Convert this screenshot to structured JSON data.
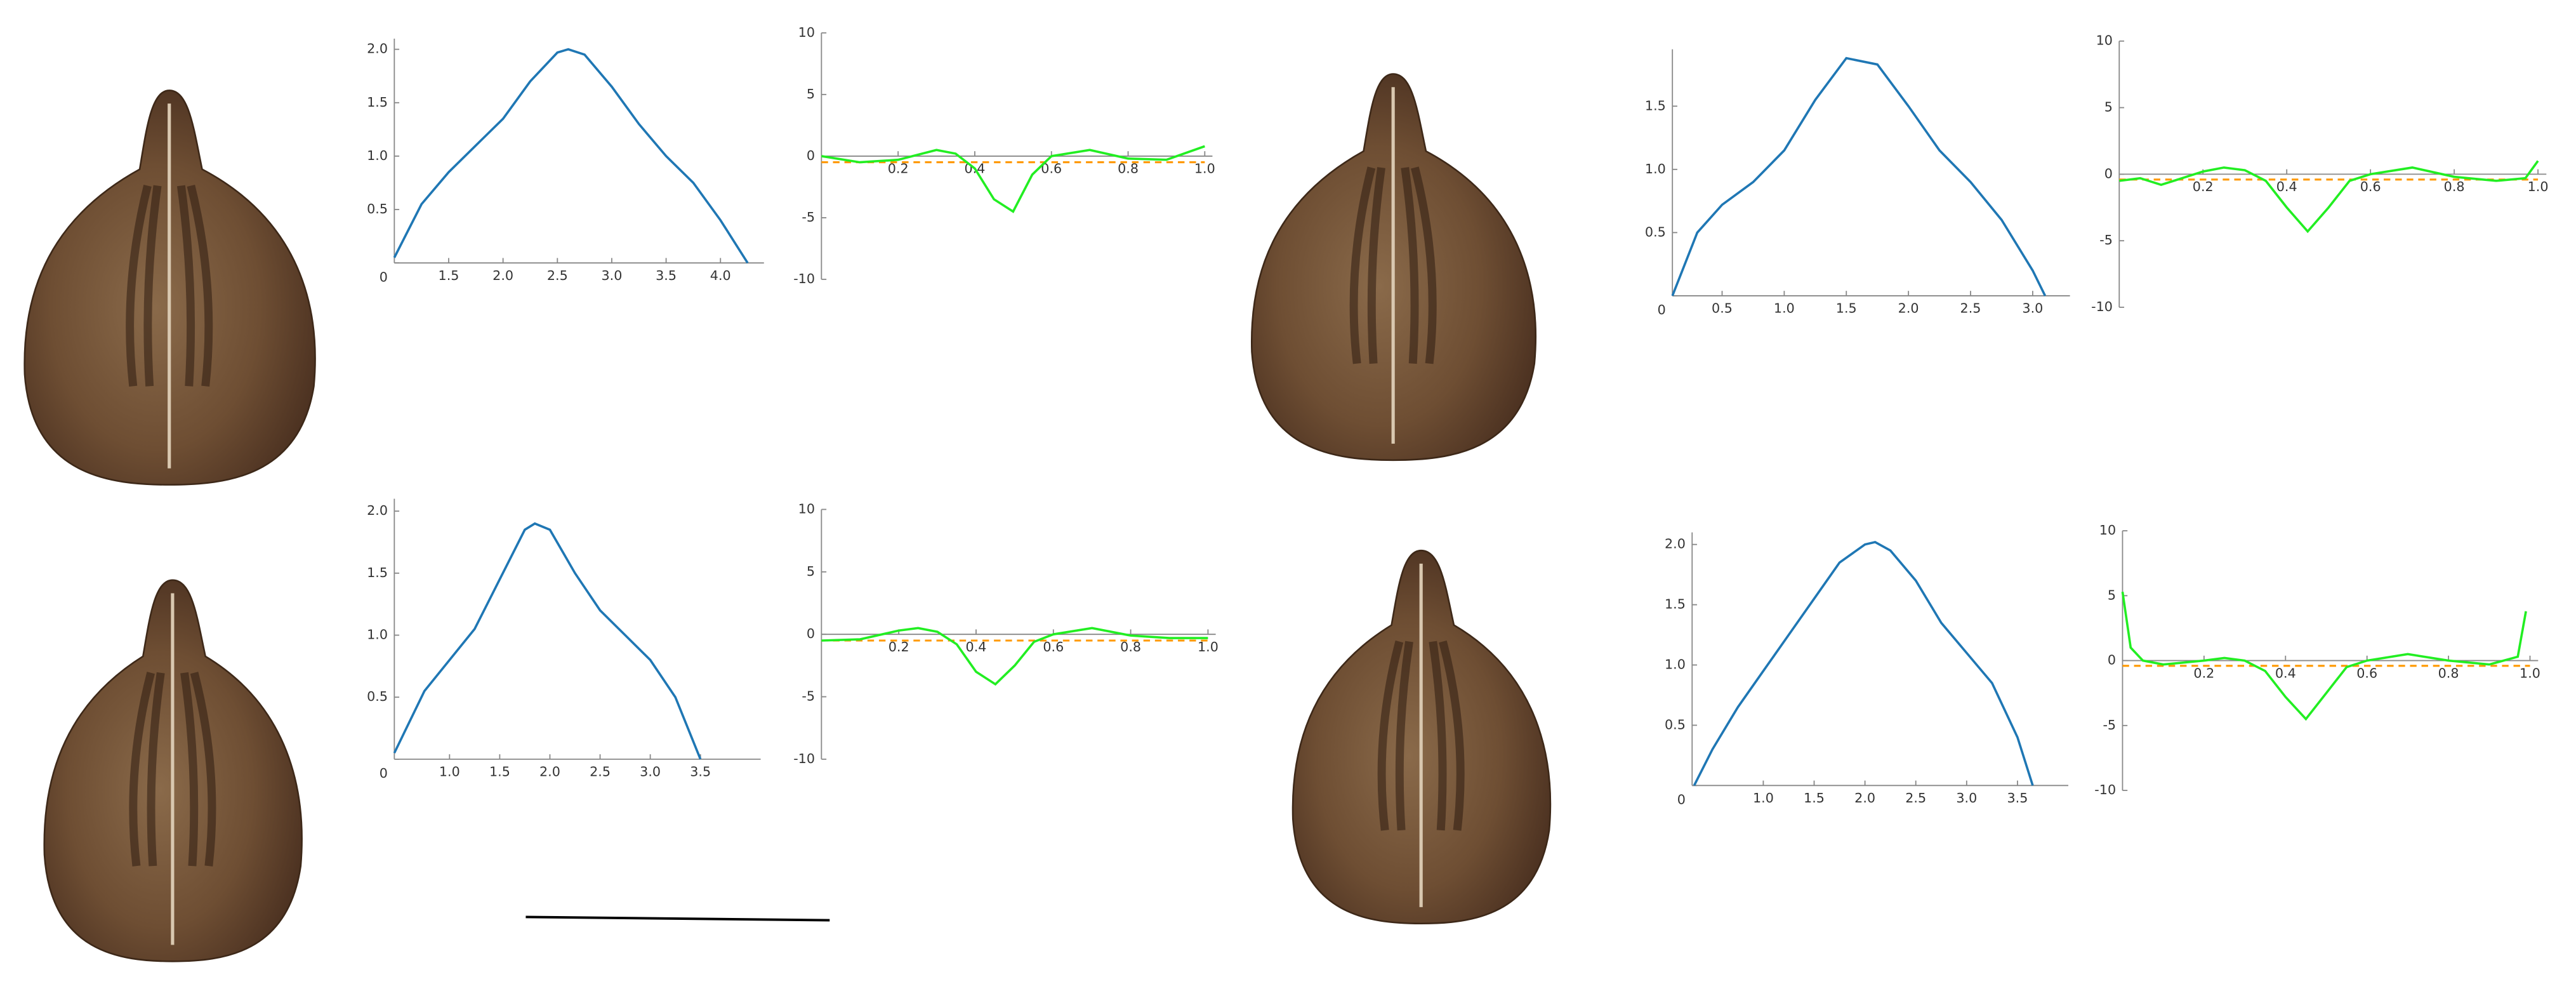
{
  "chart_data": [
    {
      "type": "line",
      "xlim": [
        1.0,
        4.4
      ],
      "ylim": [
        0,
        2.1
      ],
      "xticks": [
        1.5,
        {
          "value": 2.0,
          "label": "2.0"
        },
        2.5,
        {
          "value": 3.0,
          "label": "3.0"
        },
        3.5,
        {
          "value": 4.0,
          "label": "4.0"
        }
      ],
      "yticks": [
        0,
        0.5,
        {
          "value": 1.0,
          "label": "1.0"
        },
        1.5,
        {
          "value": 2.0,
          "label": "2.0"
        }
      ],
      "series": [
        {
          "color": "#1f77b4",
          "x": [
            1.0,
            1.25,
            1.5,
            1.75,
            2.0,
            2.25,
            2.5,
            2.6,
            2.75,
            3.0,
            3.25,
            3.5,
            3.75,
            4.0,
            4.25
          ],
          "values": [
            0.05,
            0.55,
            0.85,
            1.1,
            1.35,
            1.7,
            1.97,
            2.0,
            1.95,
            1.65,
            1.3,
            1.0,
            0.75,
            0.4,
            0.0
          ]
        }
      ]
    },
    {
      "type": "line",
      "xlim": [
        0,
        1.02
      ],
      "ylim": [
        -10,
        10
      ],
      "xticks": [
        0.2,
        0.4,
        0.6,
        0.8,
        {
          "value": 1.0,
          "label": "1.0"
        }
      ],
      "yticks": [
        -10,
        -5,
        0,
        5,
        10
      ],
      "series": [
        {
          "color": "#ff9900",
          "linestyle": "dashed",
          "x": [
            0,
            1.0
          ],
          "values": [
            -0.5,
            -0.5
          ]
        },
        {
          "color": "#22ee22",
          "x": [
            0,
            0.1,
            0.2,
            0.3,
            0.35,
            0.4,
            0.45,
            0.5,
            0.55,
            0.6,
            0.7,
            0.8,
            0.9,
            1.0
          ],
          "values": [
            0,
            -0.5,
            -0.3,
            0.5,
            0.2,
            -1.0,
            -3.5,
            -4.5,
            -1.5,
            0,
            0.5,
            -0.2,
            -0.3,
            0.8
          ]
        }
      ]
    },
    {
      "type": "line",
      "xlim": [
        0.1,
        3.3
      ],
      "ylim": [
        0,
        1.95
      ],
      "xticks": [
        0.5,
        {
          "value": 1.0,
          "label": "1.0"
        },
        1.5,
        {
          "value": 2.0,
          "label": "2.0"
        },
        2.5,
        {
          "value": 3.0,
          "label": "3.0"
        }
      ],
      "yticks": [
        0,
        0.5,
        {
          "value": 1.0,
          "label": "1.0"
        },
        1.5
      ],
      "series": [
        {
          "color": "#1f77b4",
          "x": [
            0.1,
            0.3,
            0.5,
            0.75,
            1.0,
            1.25,
            1.5,
            1.75,
            2.0,
            2.25,
            2.5,
            2.75,
            3.0,
            3.1
          ],
          "values": [
            0.0,
            0.5,
            0.72,
            0.9,
            1.15,
            1.55,
            1.88,
            1.83,
            1.5,
            1.15,
            0.9,
            0.6,
            0.2,
            0.0
          ]
        }
      ]
    },
    {
      "type": "line",
      "xlim": [
        0,
        1.02
      ],
      "ylim": [
        -10,
        10
      ],
      "xticks": [
        0.2,
        0.4,
        0.6,
        0.8,
        {
          "value": 1.0,
          "label": "1.0"
        }
      ],
      "yticks": [
        -10,
        -5,
        0,
        5,
        10
      ],
      "series": [
        {
          "color": "#ff9900",
          "linestyle": "dashed",
          "x": [
            0,
            1.0
          ],
          "values": [
            -0.4,
            -0.4
          ]
        },
        {
          "color": "#22ee22",
          "x": [
            0,
            0.05,
            0.1,
            0.2,
            0.25,
            0.3,
            0.35,
            0.4,
            0.45,
            0.5,
            0.55,
            0.6,
            0.7,
            0.8,
            0.9,
            0.97,
            1.0
          ],
          "values": [
            -0.5,
            -0.3,
            -0.8,
            0.2,
            0.5,
            0.3,
            -0.5,
            -2.5,
            -4.3,
            -2.5,
            -0.5,
            0,
            0.5,
            -0.2,
            -0.5,
            -0.3,
            1.0
          ]
        }
      ]
    },
    {
      "type": "line",
      "xlim": [
        0.45,
        4.1
      ],
      "ylim": [
        0,
        2.1
      ],
      "xticks": [
        {
          "value": 1.0,
          "label": "1.0"
        },
        1.5,
        {
          "value": 2.0,
          "label": "2.0"
        },
        2.5,
        {
          "value": 3.0,
          "label": "3.0"
        },
        3.5
      ],
      "yticks": [
        0,
        0.5,
        {
          "value": 1.0,
          "label": "1.0"
        },
        1.5,
        {
          "value": 2.0,
          "label": "2.0"
        }
      ],
      "series": [
        {
          "color": "#1f77b4",
          "x": [
            0.45,
            0.75,
            1.0,
            1.25,
            1.5,
            1.75,
            1.85,
            2.0,
            2.25,
            2.5,
            2.75,
            3.0,
            3.25,
            3.5
          ],
          "values": [
            0.05,
            0.55,
            0.8,
            1.05,
            1.45,
            1.85,
            1.9,
            1.85,
            1.5,
            1.2,
            1.0,
            0.8,
            0.5,
            0.0
          ]
        }
      ]
    },
    {
      "type": "line",
      "xlim": [
        0,
        1.02
      ],
      "ylim": [
        -10,
        10
      ],
      "xticks": [
        0.2,
        0.4,
        0.6,
        0.8,
        {
          "value": 1.0,
          "label": "1.0"
        }
      ],
      "yticks": [
        -10,
        -5,
        0,
        5,
        10
      ],
      "series": [
        {
          "color": "#ff9900",
          "linestyle": "dashed",
          "x": [
            0,
            1.0
          ],
          "values": [
            -0.5,
            -0.5
          ]
        },
        {
          "color": "#22ee22",
          "x": [
            0,
            0.1,
            0.2,
            0.25,
            0.3,
            0.35,
            0.4,
            0.45,
            0.5,
            0.55,
            0.6,
            0.7,
            0.8,
            0.9,
            1.0
          ],
          "values": [
            -0.5,
            -0.4,
            0.3,
            0.5,
            0.2,
            -0.8,
            -3.0,
            -4.0,
            -2.5,
            -0.6,
            0,
            0.5,
            -0.1,
            -0.3,
            -0.3
          ]
        }
      ]
    },
    {
      "type": "line",
      "xlim": [
        0.3,
        4.0
      ],
      "ylim": [
        0,
        2.1
      ],
      "xticks": [
        {
          "value": 1.0,
          "label": "1.0"
        },
        1.5,
        {
          "value": 2.0,
          "label": "2.0"
        },
        2.5,
        {
          "value": 3.0,
          "label": "3.0"
        },
        3.5
      ],
      "yticks": [
        0,
        0.5,
        {
          "value": 1.0,
          "label": "1.0"
        },
        1.5,
        {
          "value": 2.0,
          "label": "2.0"
        }
      ],
      "series": [
        {
          "color": "#1f77b4",
          "x": [
            0.32,
            0.5,
            0.75,
            1.0,
            1.25,
            1.5,
            1.75,
            2.0,
            2.1,
            2.25,
            2.5,
            2.75,
            3.0,
            3.25,
            3.5,
            3.65
          ],
          "values": [
            0.0,
            0.3,
            0.65,
            0.95,
            1.25,
            1.55,
            1.85,
            2.0,
            2.02,
            1.95,
            1.7,
            1.35,
            1.1,
            0.85,
            0.4,
            0.0
          ]
        }
      ]
    },
    {
      "type": "line",
      "xlim": [
        0,
        1.02
      ],
      "ylim": [
        -10,
        10
      ],
      "xticks": [
        0.2,
        0.4,
        0.6,
        0.8,
        {
          "value": 1.0,
          "label": "1.0"
        }
      ],
      "yticks": [
        -10,
        -5,
        0,
        5,
        10
      ],
      "series": [
        {
          "color": "#ff9900",
          "linestyle": "dashed",
          "x": [
            0,
            1.0
          ],
          "values": [
            -0.4,
            -0.4
          ]
        },
        {
          "color": "#22ee22",
          "x": [
            0,
            0.02,
            0.05,
            0.1,
            0.2,
            0.25,
            0.3,
            0.35,
            0.4,
            0.45,
            0.5,
            0.55,
            0.6,
            0.7,
            0.8,
            0.9,
            0.97,
            0.99
          ],
          "values": [
            5.3,
            1,
            0,
            -0.3,
            0,
            0.2,
            0,
            -0.8,
            -2.8,
            -4.5,
            -2.5,
            -0.5,
            0,
            0.5,
            0,
            -0.3,
            0.3,
            3.8
          ]
        }
      ]
    }
  ]
}
